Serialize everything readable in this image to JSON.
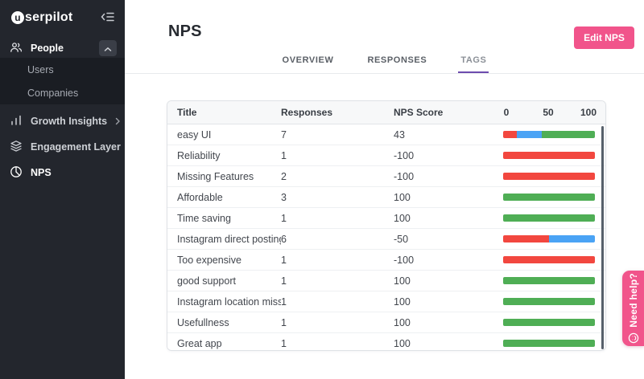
{
  "sidebar": {
    "logo_initial": "u",
    "logo_text": "serpilot",
    "items": {
      "people": "People",
      "users": "Users",
      "companies": "Companies",
      "growth_insights": "Growth Insights",
      "engagement_layer": "Engagement Layer",
      "nps": "NPS"
    }
  },
  "header": {
    "title": "NPS",
    "edit_button_label": "Edit NPS"
  },
  "tabs": {
    "overview": "OVERVIEW",
    "responses": "RESPONSES",
    "tags": "TAGS"
  },
  "table": {
    "columns": {
      "title": "Title",
      "responses": "Responses",
      "score": "NPS Score"
    },
    "scale": [
      "0",
      "50",
      "100"
    ],
    "rows": [
      {
        "title": "easy UI",
        "responses": "7",
        "score": "43",
        "segments": [
          {
            "type": "detractor",
            "pct": 15
          },
          {
            "type": "passive",
            "pct": 27
          },
          {
            "type": "promoter",
            "pct": 58
          }
        ]
      },
      {
        "title": "Reliability",
        "responses": "1",
        "score": "-100",
        "segments": [
          {
            "type": "detractor",
            "pct": 100
          }
        ]
      },
      {
        "title": "Missing Features",
        "responses": "2",
        "score": "-100",
        "segments": [
          {
            "type": "detractor",
            "pct": 100
          }
        ]
      },
      {
        "title": "Affordable",
        "responses": "3",
        "score": "100",
        "segments": [
          {
            "type": "promoter",
            "pct": 100
          }
        ]
      },
      {
        "title": "Time saving",
        "responses": "1",
        "score": "100",
        "segments": [
          {
            "type": "promoter",
            "pct": 100
          }
        ]
      },
      {
        "title": "Instagram direct posting ...",
        "responses": "6",
        "score": "-50",
        "segments": [
          {
            "type": "detractor",
            "pct": 50
          },
          {
            "type": "passive",
            "pct": 50
          }
        ]
      },
      {
        "title": "Too expensive",
        "responses": "1",
        "score": "-100",
        "segments": [
          {
            "type": "detractor",
            "pct": 100
          }
        ]
      },
      {
        "title": "good support",
        "responses": "1",
        "score": "100",
        "segments": [
          {
            "type": "promoter",
            "pct": 100
          }
        ]
      },
      {
        "title": "Instagram location missing",
        "responses": "1",
        "score": "100",
        "segments": [
          {
            "type": "promoter",
            "pct": 100
          }
        ]
      },
      {
        "title": "Usefullness",
        "responses": "1",
        "score": "100",
        "segments": [
          {
            "type": "promoter",
            "pct": 100
          }
        ]
      },
      {
        "title": "Great app",
        "responses": "1",
        "score": "100",
        "segments": [
          {
            "type": "promoter",
            "pct": 100
          }
        ]
      }
    ]
  },
  "help_tab": {
    "label": "Need help?"
  },
  "colors": {
    "sidebar_bg": "#23262d",
    "accent_pink": "#f1548b",
    "tab_active_underline": "#6d4cae",
    "detractor": "#f2473f",
    "passive": "#4aa3f5",
    "promoter": "#4fae55"
  }
}
